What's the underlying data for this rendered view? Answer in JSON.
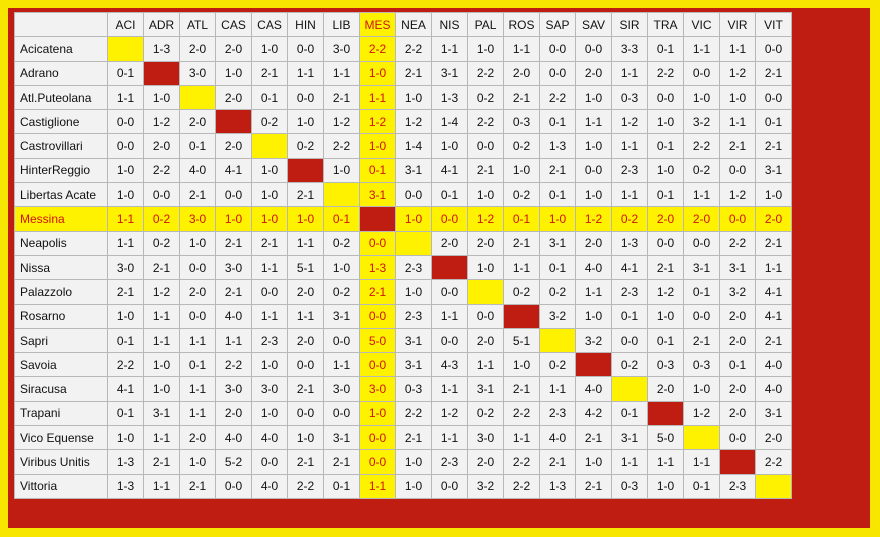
{
  "columns": [
    "ACI",
    "ADR",
    "ATL",
    "CAS",
    "CAS",
    "HIN",
    "LIB",
    "MES",
    "NEA",
    "NIS",
    "PAL",
    "ROS",
    "SAP",
    "SAV",
    "SIR",
    "TRA",
    "VIC",
    "VIR",
    "VIT"
  ],
  "highlight_col": 7,
  "highlight_row": 7,
  "rows": [
    {
      "team": "Acicatena",
      "cells": [
        "",
        "1-3",
        "2-0",
        "2-0",
        "1-0",
        "0-0",
        "3-0",
        "2-2",
        "2-2",
        "1-1",
        "1-0",
        "1-1",
        "0-0",
        "0-0",
        "3-3",
        "0-1",
        "1-1",
        "1-1",
        "0-0"
      ],
      "blank": "yellow"
    },
    {
      "team": "Adrano",
      "cells": [
        "0-1",
        "",
        "3-0",
        "1-0",
        "2-1",
        "1-1",
        "1-1",
        "1-0",
        "2-1",
        "3-1",
        "2-2",
        "2-0",
        "0-0",
        "2-0",
        "1-1",
        "2-2",
        "0-0",
        "1-2",
        "2-1"
      ],
      "blank": "red"
    },
    {
      "team": "Atl.Puteolana",
      "cells": [
        "1-1",
        "1-0",
        "",
        "2-0",
        "0-1",
        "0-0",
        "2-1",
        "1-1",
        "1-0",
        "1-3",
        "0-2",
        "2-1",
        "2-2",
        "1-0",
        "0-3",
        "0-0",
        "1-0",
        "1-0",
        "0-0"
      ],
      "blank": "yellow"
    },
    {
      "team": "Castiglione",
      "cells": [
        "0-0",
        "1-2",
        "2-0",
        "",
        "0-2",
        "1-0",
        "1-2",
        "1-2",
        "1-2",
        "1-4",
        "2-2",
        "0-3",
        "0-1",
        "1-1",
        "1-2",
        "1-0",
        "3-2",
        "1-1",
        "0-1"
      ],
      "blank": "red"
    },
    {
      "team": "Castrovillari",
      "cells": [
        "0-0",
        "2-0",
        "0-1",
        "2-0",
        "",
        "0-2",
        "2-2",
        "1-0",
        "1-4",
        "1-0",
        "0-0",
        "0-2",
        "1-3",
        "1-0",
        "1-1",
        "0-1",
        "2-2",
        "2-1",
        "2-1"
      ],
      "blank": "yellow"
    },
    {
      "team": "HinterReggio",
      "cells": [
        "1-0",
        "2-2",
        "4-0",
        "4-1",
        "1-0",
        "",
        "1-0",
        "0-1",
        "3-1",
        "4-1",
        "2-1",
        "1-0",
        "2-1",
        "0-0",
        "2-3",
        "1-0",
        "0-2",
        "0-0",
        "3-1"
      ],
      "blank": "red"
    },
    {
      "team": "Libertas Acate",
      "cells": [
        "1-0",
        "0-0",
        "2-1",
        "0-0",
        "1-0",
        "2-1",
        "",
        "3-1",
        "0-0",
        "0-1",
        "1-0",
        "0-2",
        "0-1",
        "1-0",
        "1-1",
        "0-1",
        "1-1",
        "1-2",
        "1-0"
      ],
      "blank": "yellow"
    },
    {
      "team": "Messina",
      "cells": [
        "1-1",
        "0-2",
        "3-0",
        "1-0",
        "1-0",
        "1-0",
        "0-1",
        "",
        "1-0",
        "0-0",
        "1-2",
        "0-1",
        "1-0",
        "1-2",
        "0-2",
        "2-0",
        "2-0",
        "0-0",
        "2-0"
      ],
      "blank": "red"
    },
    {
      "team": "Neapolis",
      "cells": [
        "1-1",
        "0-2",
        "1-0",
        "2-1",
        "2-1",
        "1-1",
        "0-2",
        "0-0",
        "",
        "2-0",
        "2-0",
        "2-1",
        "3-1",
        "2-0",
        "1-3",
        "0-0",
        "0-0",
        "2-2",
        "2-1"
      ],
      "blank": "yellow"
    },
    {
      "team": "Nissa",
      "cells": [
        "3-0",
        "2-1",
        "0-0",
        "3-0",
        "1-1",
        "5-1",
        "1-0",
        "1-3",
        "2-3",
        "",
        "1-0",
        "1-1",
        "0-1",
        "4-0",
        "4-1",
        "2-1",
        "3-1",
        "3-1",
        "1-1"
      ],
      "blank": "red"
    },
    {
      "team": "Palazzolo",
      "cells": [
        "2-1",
        "1-2",
        "2-0",
        "2-1",
        "0-0",
        "2-0",
        "0-2",
        "2-1",
        "1-0",
        "0-0",
        "",
        "0-2",
        "0-2",
        "1-1",
        "2-3",
        "1-2",
        "0-1",
        "3-2",
        "4-1"
      ],
      "blank": "yellow"
    },
    {
      "team": "Rosarno",
      "cells": [
        "1-0",
        "1-1",
        "0-0",
        "4-0",
        "1-1",
        "1-1",
        "3-1",
        "0-0",
        "2-3",
        "1-1",
        "0-0",
        "",
        "3-2",
        "1-0",
        "0-1",
        "1-0",
        "0-0",
        "2-0",
        "4-1"
      ],
      "blank": "red"
    },
    {
      "team": "Sapri",
      "cells": [
        "0-1",
        "1-1",
        "1-1",
        "1-1",
        "2-3",
        "2-0",
        "0-0",
        "5-0",
        "3-1",
        "0-0",
        "2-0",
        "5-1",
        "",
        "3-2",
        "0-0",
        "0-1",
        "2-1",
        "2-0",
        "2-1"
      ],
      "blank": "yellow"
    },
    {
      "team": "Savoia",
      "cells": [
        "2-2",
        "1-0",
        "0-1",
        "2-2",
        "1-0",
        "0-0",
        "1-1",
        "0-0",
        "3-1",
        "4-3",
        "1-1",
        "1-0",
        "0-2",
        "",
        "0-2",
        "0-3",
        "0-3",
        "0-1",
        "4-0"
      ],
      "blank": "red"
    },
    {
      "team": "Siracusa",
      "cells": [
        "4-1",
        "1-0",
        "1-1",
        "3-0",
        "3-0",
        "2-1",
        "3-0",
        "3-0",
        "0-3",
        "1-1",
        "3-1",
        "2-1",
        "1-1",
        "4-0",
        "",
        "2-0",
        "1-0",
        "2-0",
        "4-0"
      ],
      "blank": "yellow"
    },
    {
      "team": "Trapani",
      "cells": [
        "0-1",
        "3-1",
        "1-1",
        "2-0",
        "1-0",
        "0-0",
        "0-0",
        "1-0",
        "2-2",
        "1-2",
        "0-2",
        "2-2",
        "2-3",
        "4-2",
        "0-1",
        "",
        "1-2",
        "2-0",
        "3-1"
      ],
      "blank": "red"
    },
    {
      "team": "Vico Equense",
      "cells": [
        "1-0",
        "1-1",
        "2-0",
        "4-0",
        "4-0",
        "1-0",
        "3-1",
        "0-0",
        "2-1",
        "1-1",
        "3-0",
        "1-1",
        "4-0",
        "2-1",
        "3-1",
        "5-0",
        "",
        "0-0",
        "2-0"
      ],
      "blank": "yellow"
    },
    {
      "team": "Viribus Unitis",
      "cells": [
        "1-3",
        "2-1",
        "1-0",
        "5-2",
        "0-0",
        "2-1",
        "2-1",
        "0-0",
        "1-0",
        "2-3",
        "2-0",
        "2-2",
        "2-1",
        "1-0",
        "1-1",
        "1-1",
        "1-1",
        "",
        "2-2"
      ],
      "blank": "red"
    },
    {
      "team": "Vittoria",
      "cells": [
        "1-3",
        "1-1",
        "2-1",
        "0-0",
        "4-0",
        "2-2",
        "0-1",
        "1-1",
        "1-0",
        "0-0",
        "3-2",
        "2-2",
        "1-3",
        "2-1",
        "0-3",
        "1-0",
        "0-1",
        "2-3",
        ""
      ],
      "blank": "yellow"
    }
  ]
}
